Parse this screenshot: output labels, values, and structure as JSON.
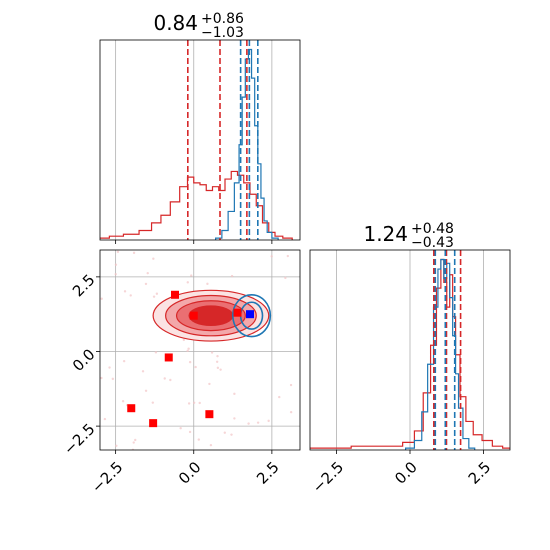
{
  "chart_data": [
    {
      "type": "area",
      "panel": "marginal-param-1",
      "title_value": "0.84",
      "title_plus": "+0.86",
      "title_minus": "−1.03",
      "xlim": [
        -3.0,
        3.4
      ],
      "grid": true,
      "x_ticks": [
        -2.5,
        0.0,
        2.5
      ],
      "series": [
        {
          "color": "#d62728",
          "x": [
            -2.9,
            -2.5,
            -2.0,
            -1.5,
            -1.2,
            -0.9,
            -0.6,
            -0.3,
            -0.1,
            0.1,
            0.3,
            0.5,
            0.7,
            0.9,
            1.1,
            1.3,
            1.5,
            1.7,
            1.9,
            2.1,
            2.3,
            2.5,
            2.7,
            3.0
          ],
          "y": [
            0.01,
            0.02,
            0.03,
            0.05,
            0.09,
            0.13,
            0.2,
            0.28,
            0.33,
            0.3,
            0.29,
            0.26,
            0.28,
            0.26,
            0.32,
            0.36,
            0.34,
            0.3,
            0.24,
            0.18,
            0.09,
            0.04,
            0.02,
            0.01
          ],
          "quantile_lines": [
            -0.19,
            0.84,
            1.7
          ]
        },
        {
          "color": "#1f77b4",
          "x": [
            0.8,
            1.0,
            1.2,
            1.4,
            1.5,
            1.6,
            1.7,
            1.8,
            1.9,
            2.0,
            2.1,
            2.2,
            2.3,
            2.4,
            2.6
          ],
          "y": [
            0.01,
            0.05,
            0.15,
            0.3,
            0.5,
            0.75,
            0.95,
            1.0,
            0.85,
            0.6,
            0.4,
            0.22,
            0.1,
            0.04,
            0.01
          ],
          "quantile_lines": [
            1.5,
            1.78,
            2.05
          ]
        }
      ]
    },
    {
      "type": "area",
      "panel": "marginal-param-2",
      "title_value": "1.24",
      "title_plus": "+0.48",
      "title_minus": "−0.43",
      "xlim": [
        -3.4,
        3.4
      ],
      "grid": true,
      "x_ticks": [
        -2.5,
        0.0,
        2.5
      ],
      "series": [
        {
          "color": "#d62728",
          "x": [
            -3.3,
            -2.5,
            -1.5,
            -0.5,
            0.0,
            0.3,
            0.6,
            0.8,
            1.0,
            1.1,
            1.2,
            1.3,
            1.4,
            1.5,
            1.6,
            1.8,
            2.0,
            2.3,
            2.6,
            3.0,
            3.3
          ],
          "y": [
            0.01,
            0.01,
            0.02,
            0.02,
            0.04,
            0.1,
            0.3,
            0.55,
            0.85,
            1.0,
            0.88,
            0.75,
            0.92,
            0.7,
            0.5,
            0.28,
            0.15,
            0.08,
            0.05,
            0.02,
            0.01
          ],
          "quantile_lines": [
            0.81,
            1.24,
            1.72
          ]
        },
        {
          "color": "#1f77b4",
          "x": [
            0.0,
            0.3,
            0.5,
            0.7,
            0.9,
            1.0,
            1.1,
            1.2,
            1.3,
            1.4,
            1.5,
            1.6,
            1.7,
            1.9,
            2.1
          ],
          "y": [
            0.01,
            0.05,
            0.2,
            0.45,
            0.75,
            0.95,
            1.0,
            0.9,
            0.98,
            0.8,
            0.6,
            0.4,
            0.22,
            0.06,
            0.01
          ],
          "quantile_lines": [
            0.86,
            1.2,
            1.52
          ]
        }
      ]
    },
    {
      "type": "scatter",
      "panel": "joint-density",
      "xlim": [
        -3.0,
        3.4
      ],
      "ylim": [
        -3.3,
        3.4
      ],
      "grid": true,
      "x_ticks": [
        -2.5,
        0.0,
        2.5
      ],
      "y_ticks": [
        -2.5,
        0.0,
        2.5
      ],
      "red_points": [
        [
          -0.6,
          1.9
        ],
        [
          0.0,
          1.2
        ],
        [
          1.4,
          1.3
        ],
        [
          -0.8,
          -0.2
        ],
        [
          -2.0,
          -1.9
        ],
        [
          0.5,
          -2.1
        ],
        [
          -1.3,
          -2.4
        ]
      ],
      "blue_point": [
        1.8,
        1.25
      ],
      "red_contours": {
        "center": [
          0.55,
          1.2
        ],
        "levels": [
          [
            3.7,
            1.7
          ],
          [
            2.9,
            1.35
          ],
          [
            2.2,
            1.0
          ],
          [
            1.4,
            0.65
          ]
        ]
      },
      "blue_contours": {
        "center": [
          1.85,
          1.2
        ],
        "levels": [
          [
            0.6,
            0.7
          ],
          [
            0.35,
            0.45
          ]
        ]
      }
    }
  ]
}
